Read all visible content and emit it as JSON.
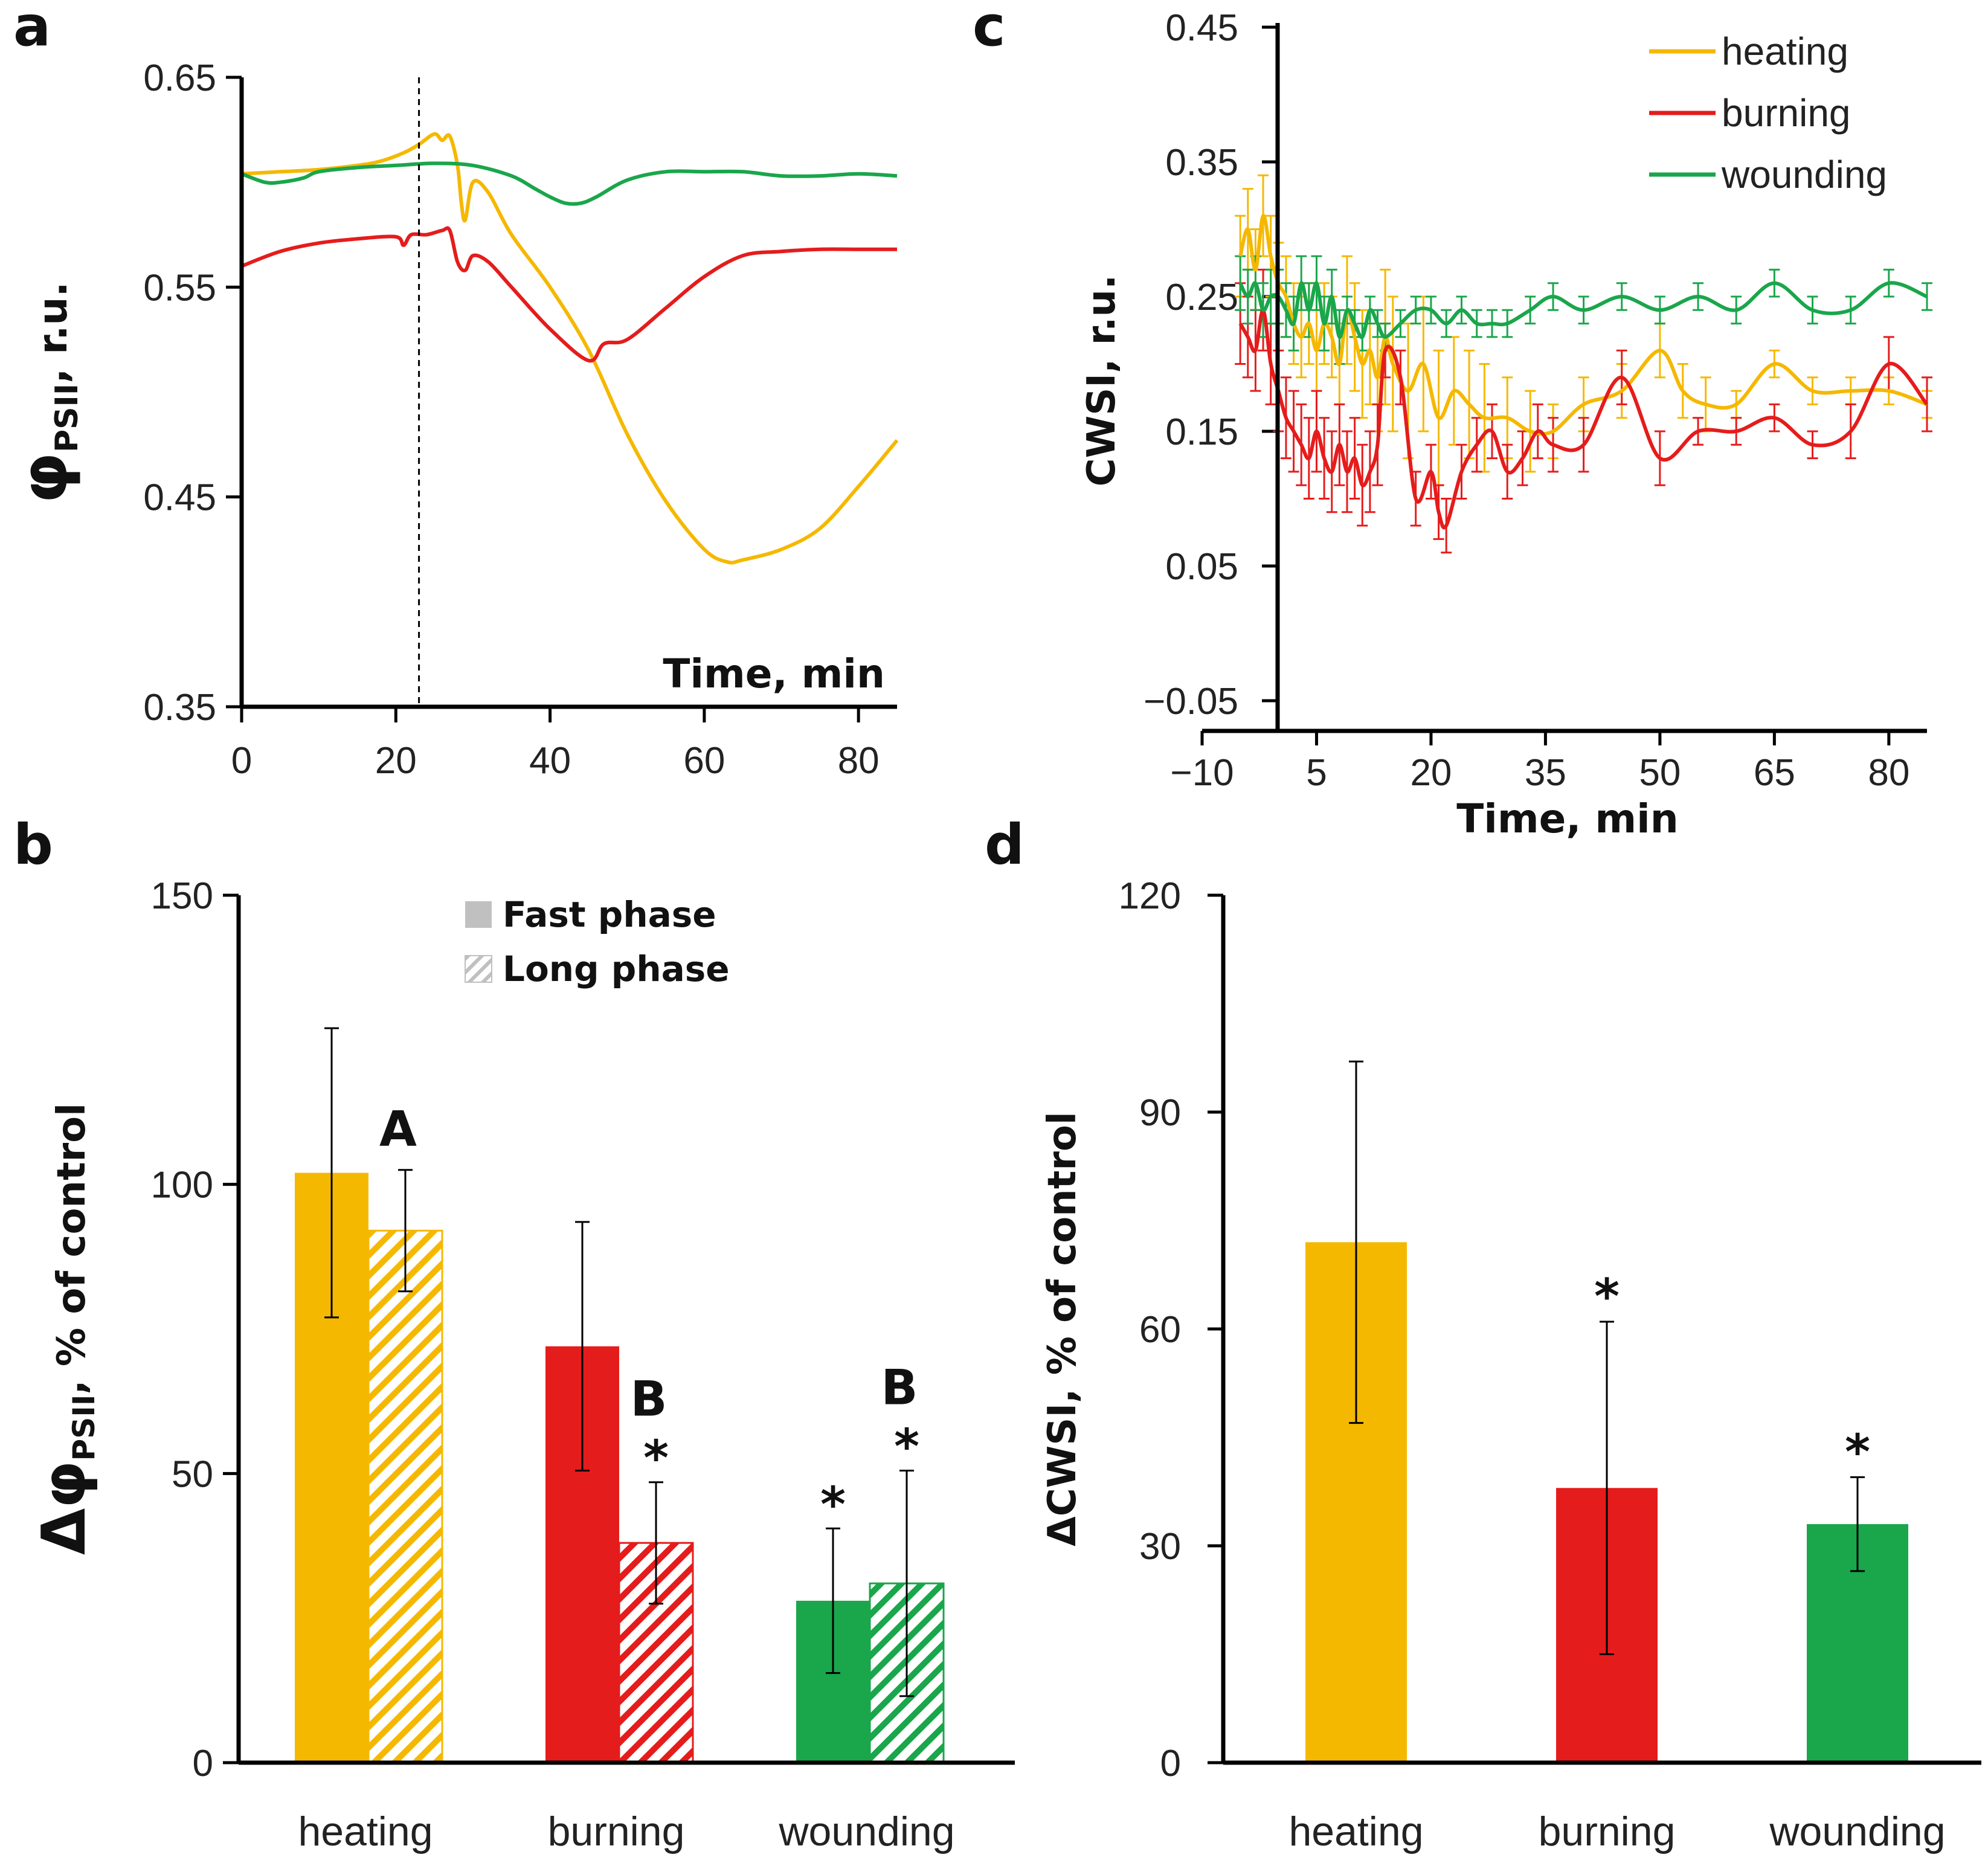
{
  "colors": {
    "heating": "#f5b800",
    "burning": "#e51c1c",
    "wounding": "#1aa64b",
    "axis": "#000000"
  },
  "panels": {
    "a": "a",
    "b": "b",
    "c": "c",
    "d": "d"
  },
  "chart_data": [
    {
      "id": "a",
      "type": "line",
      "xlabel": "Time, min",
      "ylabel_main": "φ",
      "ylabel_sub": "PSII",
      "ylabel_rest": ", r.u.",
      "xlim": [
        0,
        85
      ],
      "ylim": [
        0.35,
        0.65
      ],
      "xticks": [
        0,
        20,
        40,
        60,
        80
      ],
      "yticks": [
        0.35,
        0.45,
        0.55,
        0.65
      ],
      "xtick_labels": [
        "0",
        "20",
        "40",
        "60",
        "80"
      ],
      "ytick_labels": [
        "0.35",
        "0.45",
        "0.55",
        "0.65"
      ],
      "marker_x": 23,
      "series": [
        {
          "name": "heating",
          "color": "#f5b800",
          "x": [
            0,
            5,
            10,
            15,
            18,
            21,
            23,
            25,
            26,
            27,
            28,
            28.5,
            29,
            30,
            32,
            35,
            40,
            45,
            50,
            55,
            60,
            63,
            65,
            70,
            75,
            80,
            85
          ],
          "y": [
            0.604,
            0.605,
            0.606,
            0.608,
            0.61,
            0.614,
            0.618,
            0.623,
            0.62,
            0.622,
            0.608,
            0.59,
            0.582,
            0.6,
            0.595,
            0.575,
            0.55,
            0.52,
            0.48,
            0.448,
            0.425,
            0.419,
            0.42,
            0.425,
            0.435,
            0.455,
            0.477
          ]
        },
        {
          "name": "burning",
          "color": "#e51c1c",
          "x": [
            0,
            5,
            10,
            15,
            20,
            21,
            22,
            24,
            26,
            27,
            28,
            29,
            30,
            32,
            35,
            40,
            45,
            47,
            50,
            55,
            60,
            65,
            70,
            75,
            80,
            85
          ],
          "y": [
            0.56,
            0.567,
            0.571,
            0.573,
            0.574,
            0.57,
            0.575,
            0.575,
            0.577,
            0.577,
            0.562,
            0.558,
            0.565,
            0.562,
            0.55,
            0.53,
            0.515,
            0.523,
            0.525,
            0.54,
            0.555,
            0.565,
            0.567,
            0.568,
            0.568,
            0.568
          ]
        },
        {
          "name": "wounding",
          "color": "#1aa64b",
          "x": [
            0,
            3,
            5,
            8,
            10,
            15,
            20,
            25,
            30,
            35,
            38,
            40,
            42,
            44,
            46,
            50,
            55,
            60,
            65,
            70,
            75,
            80,
            85
          ],
          "y": [
            0.604,
            0.6,
            0.6,
            0.602,
            0.605,
            0.607,
            0.608,
            0.609,
            0.608,
            0.603,
            0.597,
            0.593,
            0.59,
            0.59,
            0.593,
            0.601,
            0.605,
            0.605,
            0.605,
            0.603,
            0.603,
            0.604,
            0.603
          ]
        }
      ]
    },
    {
      "id": "b",
      "type": "bar",
      "ylabel_main": "Δφ",
      "ylabel_sub": "PSII",
      "ylabel_rest": ", % of control",
      "ylim": [
        0,
        150
      ],
      "yticks": [
        0,
        50,
        100,
        150
      ],
      "ytick_labels": [
        "0",
        "50",
        "100",
        "150"
      ],
      "categories": [
        "heating",
        "burning",
        "wounding"
      ],
      "legend": {
        "fast": "Fast phase",
        "long": "Long phase"
      },
      "series": [
        {
          "name": "Fast phase",
          "values": [
            102,
            72,
            28
          ],
          "errors": [
            25,
            21.5,
            12.5
          ]
        },
        {
          "name": "Long phase",
          "values": [
            92,
            38,
            31
          ],
          "errors": [
            10.5,
            10.5,
            19.5
          ]
        }
      ],
      "annotations": {
        "fast": [
          "",
          "",
          "*"
        ],
        "long_letters": [
          "A",
          "B",
          "B"
        ],
        "long_star": [
          "",
          "*",
          "*"
        ]
      }
    },
    {
      "id": "c",
      "type": "line",
      "xlabel": "Time, min",
      "ylabel": "CWSI, r.u.",
      "xlim": [
        -10,
        85
      ],
      "ylim": [
        -0.05,
        0.45
      ],
      "xticks": [
        -10,
        5,
        20,
        35,
        50,
        65,
        80
      ],
      "yticks": [
        -0.05,
        0.05,
        0.15,
        0.25,
        0.35,
        0.45
      ],
      "xtick_labels": [
        "−10",
        "5",
        "20",
        "35",
        "50",
        "65",
        "80"
      ],
      "ytick_labels": [
        "−0.05",
        "0.05",
        "0.15",
        "0.25",
        "0.35",
        "0.45"
      ],
      "legend": [
        "heating",
        "burning",
        "wounding"
      ],
      "series": [
        {
          "name": "heating",
          "color": "#f5b800",
          "x": [
            -5,
            -4,
            -3,
            -2,
            -1,
            0,
            1,
            2,
            3,
            4,
            5,
            6,
            7,
            8,
            9,
            10,
            11,
            12,
            13,
            14,
            15,
            17,
            19,
            21,
            23,
            25,
            27,
            30,
            33,
            36,
            40,
            45,
            50,
            53,
            56,
            60,
            65,
            70,
            75,
            80,
            85
          ],
          "y": [
            0.28,
            0.3,
            0.27,
            0.31,
            0.28,
            0.26,
            0.25,
            0.23,
            0.22,
            0.23,
            0.21,
            0.23,
            0.22,
            0.2,
            0.24,
            0.22,
            0.2,
            0.21,
            0.19,
            0.22,
            0.2,
            0.18,
            0.2,
            0.16,
            0.18,
            0.17,
            0.16,
            0.16,
            0.15,
            0.15,
            0.17,
            0.18,
            0.21,
            0.18,
            0.17,
            0.17,
            0.2,
            0.18,
            0.18,
            0.18,
            0.17
          ],
          "err": [
            0.03,
            0.03,
            0.03,
            0.03,
            0.03,
            0.03,
            0.03,
            0.03,
            0.03,
            0.03,
            0.03,
            0.03,
            0.03,
            0.03,
            0.04,
            0.04,
            0.04,
            0.04,
            0.04,
            0.05,
            0.05,
            0.05,
            0.05,
            0.05,
            0.04,
            0.04,
            0.04,
            0.03,
            0.03,
            0.02,
            0.02,
            0.02,
            0.02,
            0.02,
            0.02,
            0.01,
            0.01,
            0.01,
            0.01,
            0.01,
            0.01
          ]
        },
        {
          "name": "burning",
          "color": "#e51c1c",
          "x": [
            -5,
            -4,
            -3,
            -2,
            -1,
            0,
            1,
            2,
            3,
            4,
            5,
            6,
            7,
            8,
            9,
            10,
            11,
            12,
            13,
            14,
            16,
            18,
            20,
            21,
            22,
            24,
            26,
            28,
            30,
            32,
            34,
            36,
            40,
            45,
            50,
            55,
            60,
            65,
            70,
            75,
            80,
            85
          ],
          "y": [
            0.23,
            0.22,
            0.21,
            0.24,
            0.2,
            0.18,
            0.16,
            0.15,
            0.14,
            0.13,
            0.15,
            0.13,
            0.12,
            0.14,
            0.12,
            0.13,
            0.11,
            0.12,
            0.14,
            0.21,
            0.19,
            0.1,
            0.12,
            0.09,
            0.08,
            0.12,
            0.14,
            0.15,
            0.12,
            0.13,
            0.15,
            0.14,
            0.14,
            0.19,
            0.13,
            0.15,
            0.15,
            0.16,
            0.14,
            0.15,
            0.2,
            0.17
          ],
          "err": [
            0.03,
            0.03,
            0.03,
            0.03,
            0.03,
            0.03,
            0.03,
            0.03,
            0.03,
            0.03,
            0.03,
            0.03,
            0.03,
            0.03,
            0.03,
            0.03,
            0.03,
            0.03,
            0.03,
            0.02,
            0.02,
            0.02,
            0.02,
            0.02,
            0.02,
            0.02,
            0.02,
            0.02,
            0.02,
            0.02,
            0.02,
            0.02,
            0.02,
            0.02,
            0.02,
            0.01,
            0.01,
            0.01,
            0.01,
            0.02,
            0.02,
            0.02
          ]
        },
        {
          "name": "wounding",
          "color": "#1aa64b",
          "x": [
            -5,
            -4,
            -3,
            -2,
            -1,
            0,
            1,
            2,
            3,
            4,
            5,
            6,
            7,
            8,
            9,
            10,
            11,
            12,
            13,
            14,
            16,
            18,
            20,
            22,
            24,
            26,
            28,
            30,
            33,
            36,
            40,
            45,
            50,
            55,
            60,
            65,
            70,
            75,
            80,
            85
          ],
          "y": [
            0.26,
            0.25,
            0.26,
            0.24,
            0.25,
            0.25,
            0.24,
            0.23,
            0.26,
            0.24,
            0.26,
            0.23,
            0.25,
            0.22,
            0.24,
            0.23,
            0.22,
            0.24,
            0.23,
            0.22,
            0.23,
            0.24,
            0.24,
            0.23,
            0.24,
            0.23,
            0.23,
            0.23,
            0.24,
            0.25,
            0.24,
            0.25,
            0.24,
            0.25,
            0.24,
            0.26,
            0.24,
            0.24,
            0.26,
            0.25
          ],
          "err": [
            0.02,
            0.02,
            0.02,
            0.02,
            0.02,
            0.02,
            0.02,
            0.02,
            0.02,
            0.02,
            0.02,
            0.02,
            0.02,
            0.02,
            0.01,
            0.01,
            0.01,
            0.01,
            0.01,
            0.01,
            0.01,
            0.01,
            0.01,
            0.01,
            0.01,
            0.01,
            0.01,
            0.01,
            0.01,
            0.01,
            0.01,
            0.01,
            0.01,
            0.01,
            0.01,
            0.01,
            0.01,
            0.01,
            0.01,
            0.01
          ]
        }
      ]
    },
    {
      "id": "d",
      "type": "bar",
      "ylabel": "ΔCWSI, % of control",
      "ylim": [
        0,
        120
      ],
      "yticks": [
        0,
        30,
        60,
        90,
        120
      ],
      "ytick_labels": [
        "0",
        "30",
        "60",
        "90",
        "120"
      ],
      "categories": [
        "heating",
        "burning",
        "wounding"
      ],
      "values": [
        72,
        38,
        33
      ],
      "errors": [
        25,
        23,
        6.5
      ],
      "annotations": [
        "",
        "*",
        "*"
      ]
    }
  ]
}
